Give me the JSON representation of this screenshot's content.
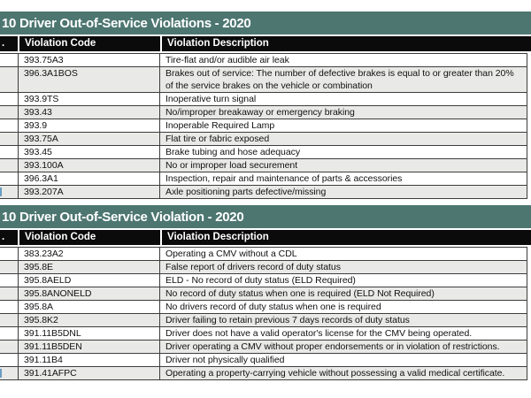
{
  "colors": {
    "title_bar_bg": "#4d7671",
    "header_bg": "#0b0b0b",
    "border_color": "#3d3d3d",
    "alt_row_bg": "#e9e9e7",
    "sliver_blue": "#6b9dc2"
  },
  "tables": [
    {
      "title": "10 Driver Out-of-Service Violations - 2020",
      "columns": {
        "number": ".",
        "code": "Violation Code",
        "description": "Violation Description"
      },
      "rows": [
        {
          "code": "393.75A3",
          "description": "Tire-flat and/or audible air leak"
        },
        {
          "code": "396.3A1BOS",
          "description": "Brakes out of service: The number of defective brakes is equal to or greater than 20% of the service brakes on the vehicle or combination"
        },
        {
          "code": "393.9TS",
          "description": "Inoperative turn signal"
        },
        {
          "code": "393.43",
          "description": "No/improper breakaway or emergency braking"
        },
        {
          "code": "393.9",
          "description": "Inoperable Required Lamp"
        },
        {
          "code": "393.75A",
          "description": "Flat tire or fabric exposed"
        },
        {
          "code": "393.45",
          "description": "Brake tubing and hose adequacy"
        },
        {
          "code": "393.100A",
          "description": "No or improper load securement"
        },
        {
          "code": "396.3A1",
          "description": "Inspection, repair and maintenance of parts & accessories"
        },
        {
          "code": "393.207A",
          "description": "Axle positioning parts defective/missing",
          "cut_number_sliver": true
        }
      ]
    },
    {
      "title": "10 Driver Out-of-Service Violation - 2020",
      "columns": {
        "number": ".",
        "code": "Violation Code",
        "description": "Violation Description"
      },
      "rows": [
        {
          "code": "383.23A2",
          "description": "Operating a CMV without a CDL"
        },
        {
          "code": "395.8E",
          "description": "False report of drivers record of duty status"
        },
        {
          "code": "395.8AELD",
          "description": "ELD - No record of duty status (ELD Required)"
        },
        {
          "code": "395.8ANONELD",
          "description": "No record of duty status when one is required (ELD Not Required)"
        },
        {
          "code": "395.8A",
          "description": "No drivers record of duty status when one is required"
        },
        {
          "code": "395.8K2",
          "description": "Driver failing to retain previous 7 days records of duty status"
        },
        {
          "code": "391.11B5DNL",
          "description": "Driver does not have a valid operator's license for the CMV being operated."
        },
        {
          "code": "391.11B5DEN",
          "description": "Driver operating a CMV without proper endorsements or in violation of restrictions."
        },
        {
          "code": "391.11B4",
          "description": "Driver not physically qualified"
        },
        {
          "code": "391.41AFPC",
          "description": "Operating a property-carrying vehicle without possessing a valid medical certificate.",
          "cut_number_sliver": true
        }
      ]
    }
  ]
}
